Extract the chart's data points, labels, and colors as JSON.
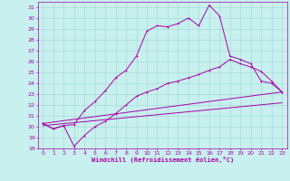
{
  "xlabel": "Windchill (Refroidissement éolien,°C)",
  "background_color": "#c8f0ee",
  "grid_color": "#a8dcd8",
  "line_color": "#aa00aa",
  "xlim": [
    -0.5,
    23.5
  ],
  "ylim": [
    18,
    31.5
  ],
  "xticks": [
    0,
    1,
    2,
    3,
    4,
    5,
    6,
    7,
    8,
    9,
    10,
    11,
    12,
    13,
    14,
    15,
    16,
    17,
    18,
    19,
    20,
    21,
    22,
    23
  ],
  "yticks": [
    18,
    19,
    20,
    21,
    22,
    23,
    24,
    25,
    26,
    27,
    28,
    29,
    30,
    31
  ],
  "series1_x": [
    0,
    1,
    2,
    3,
    4,
    5,
    6,
    7,
    8,
    9,
    10,
    11,
    12,
    13,
    14,
    15,
    16,
    17,
    18,
    19,
    20,
    21,
    22,
    23
  ],
  "series1_y": [
    20.3,
    19.8,
    20.1,
    20.2,
    21.5,
    22.3,
    23.3,
    24.5,
    25.2,
    26.5,
    28.8,
    29.3,
    29.2,
    29.5,
    30.0,
    29.3,
    31.2,
    30.2,
    26.5,
    26.2,
    25.8,
    24.2,
    24.0,
    23.2
  ],
  "series2_x": [
    0,
    1,
    2,
    3,
    4,
    5,
    6,
    7,
    8,
    9,
    10,
    11,
    12,
    13,
    14,
    15,
    16,
    17,
    18,
    19,
    20,
    21,
    22,
    23
  ],
  "series2_y": [
    20.3,
    19.8,
    20.1,
    18.2,
    19.2,
    20.0,
    20.5,
    21.2,
    22.0,
    22.8,
    23.2,
    23.5,
    24.0,
    24.2,
    24.5,
    24.8,
    25.2,
    25.5,
    26.2,
    25.8,
    25.5,
    25.1,
    24.2,
    23.2
  ],
  "series3_x": [
    0,
    23
  ],
  "series3_y": [
    20.3,
    23.2
  ],
  "series4_x": [
    0,
    23
  ],
  "series4_y": [
    20.1,
    22.2
  ]
}
